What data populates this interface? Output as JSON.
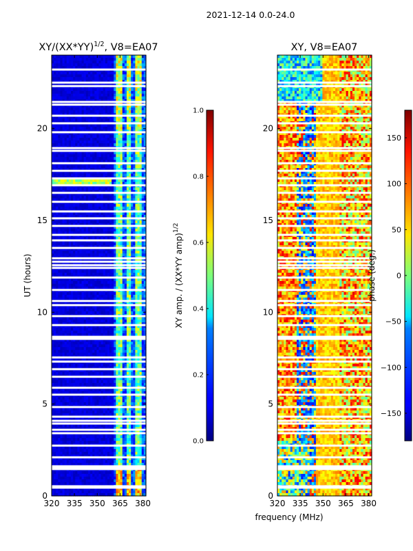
{
  "suptitle": "2021-12-14 0.0-24.0",
  "shared_xlabel": "frequency (MHz)",
  "chart_data": [
    {
      "type": "heatmap",
      "title": "XY/(XX*YY)",
      "title_sup": "1/2",
      "title_suffix": ", V8=EA07",
      "xlabel": "",
      "ylabel": "UT (hours)",
      "xlim": [
        320,
        382
      ],
      "ylim": [
        0,
        24
      ],
      "xticks": [
        320,
        335,
        350,
        365,
        380
      ],
      "yticks": [
        0,
        5,
        10,
        15,
        20
      ],
      "colorbar": {
        "label": "XY amp. / (XX*YY amp)",
        "label_sup": "1/2",
        "range": [
          0.0,
          1.0
        ],
        "ticks": [
          "0.0",
          "0.2",
          "0.4",
          "0.6",
          "0.8",
          "1.0"
        ],
        "colormap": "jet"
      },
      "description": "normalized cross-correlation amplitude; low (~0.05) over 320-360 MHz, elevated (~0.3-0.6) in vertical bands near 362-378 MHz"
    },
    {
      "type": "heatmap",
      "title": "XY, V8=EA07",
      "xlabel": "",
      "ylabel": "",
      "xlim": [
        320,
        382
      ],
      "ylim": [
        0,
        24
      ],
      "xticks": [
        320,
        335,
        350,
        365,
        380
      ],
      "yticks": [
        0,
        5,
        10,
        15,
        20
      ],
      "colorbar": {
        "label": "phase (deg.)",
        "range": [
          -180,
          180
        ],
        "ticks": [
          "−150",
          "−100",
          "−50",
          "0",
          "50",
          "100",
          "150"
        ],
        "tick_values": [
          -150,
          -100,
          -50,
          0,
          50,
          100,
          150
        ],
        "colormap": "jet"
      },
      "description": "cross-correlation phase; mixed values, blue band near 335-345 MHz, yellow/orange 350-365 MHz"
    }
  ],
  "gap_hours": [
    0.45,
    0.52,
    1.45,
    1.55,
    1.62,
    2.1,
    2.75,
    3.4,
    3.6,
    3.95,
    4.1,
    4.3,
    4.85,
    5.5,
    5.9,
    6.5,
    6.9,
    7.3,
    7.55,
    8.55,
    8.65,
    9.3,
    9.8,
    10.4,
    10.6,
    11.2,
    11.9,
    12.4,
    12.55,
    12.75,
    12.95,
    13.5,
    13.9,
    14.2,
    14.7,
    15.1,
    15.5,
    16.0,
    16.5,
    16.9,
    17.3,
    17.7,
    18.1,
    18.8,
    18.95,
    19.8,
    20.3,
    20.7,
    21.3,
    21.45,
    22.3,
    22.5,
    23.2
  ]
}
